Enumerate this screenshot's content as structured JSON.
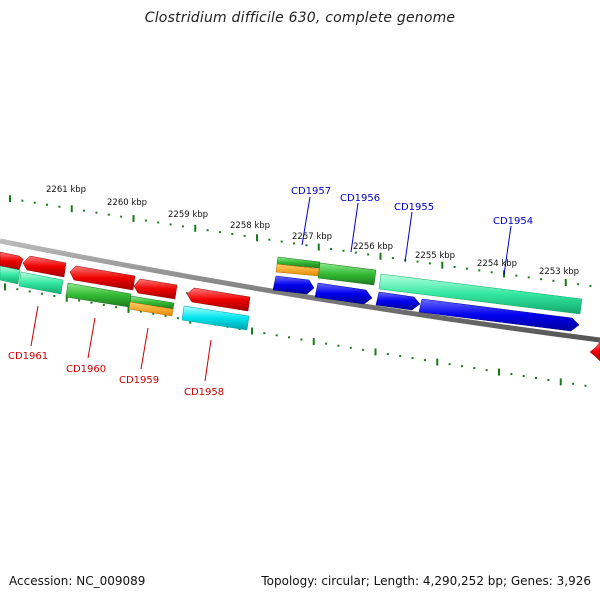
{
  "title": "Clostridium difficile 630, complete genome",
  "footer": {
    "accession": "Accession: NC_009089",
    "summary": "Topology: circular; Length: 4,290,252 bp; Genes: 3,926"
  },
  "scale_labels": [
    "2261 kbp",
    "2260 kbp",
    "2259 kbp",
    "2258 kbp",
    "2257 kbp",
    "2256 kbp",
    "2255 kbp",
    "2254 kbp",
    "2253 kbp"
  ],
  "gene_labels": {
    "cd1957": "CD1957",
    "cd1956": "CD1956",
    "cd1955": "CD1955",
    "cd1954": "CD1954",
    "cd1961": "CD1961",
    "cd1960": "CD1960",
    "cd1959": "CD1959",
    "cd1958": "CD1958"
  },
  "colors": {
    "backbone": "#888888",
    "ticks": "#1a7a1a",
    "red": "#ee0000",
    "green": "#33bb33",
    "aqua_green": "#22dd99",
    "orange": "#ff9900",
    "cyan": "#00e5ee",
    "blue": "#0000ee",
    "label_blue": "#0000cc",
    "label_red": "#cc0000"
  }
}
